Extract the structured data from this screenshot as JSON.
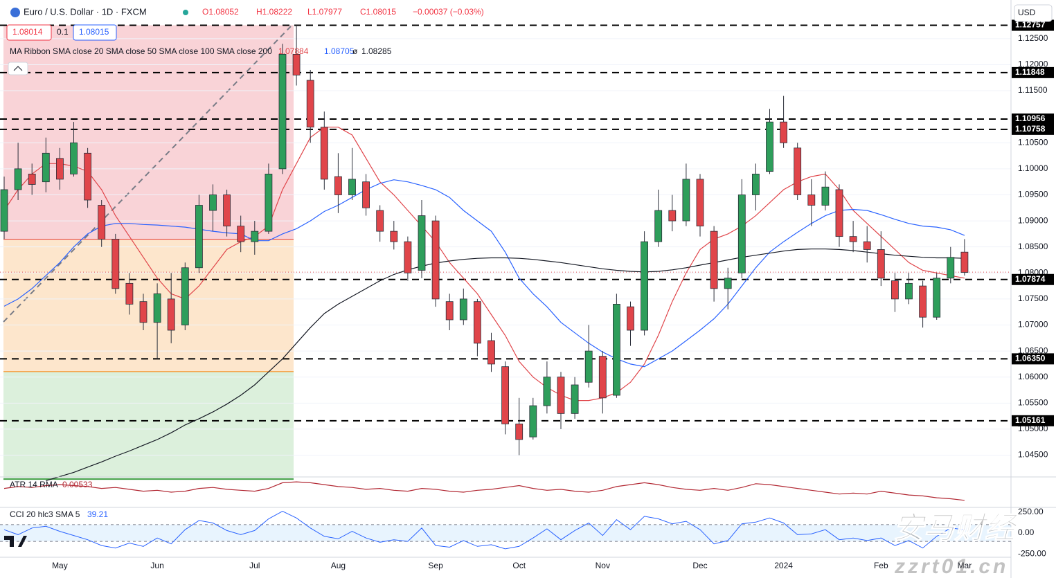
{
  "chart_data": {
    "type": "candlestick",
    "title": "Euro / U.S. Dollar · 1D · FXCM",
    "ohlc_header": [
      "O1.08052",
      "H1.08222",
      "L1.07977",
      "C1.08015",
      "−0.00037 (−0.03%)"
    ],
    "trade": [
      "1.08014",
      "0.1",
      "1.08015"
    ],
    "currency": "USD",
    "categories": [
      null,
      null,
      null,
      null,
      "May",
      null,
      null,
      null,
      null,
      null,
      null,
      "Jun",
      null,
      null,
      null,
      null,
      null,
      null,
      "Jul",
      null,
      null,
      null,
      null,
      null,
      "Aug",
      null,
      null,
      null,
      null,
      null,
      null,
      "Sep",
      null,
      null,
      null,
      null,
      null,
      "Oct",
      null,
      null,
      null,
      null,
      null,
      "Nov",
      null,
      null,
      null,
      null,
      null,
      null,
      "Dec",
      null,
      null,
      null,
      null,
      null,
      "2024",
      null,
      null,
      null,
      null,
      null,
      null,
      "Feb",
      null,
      null,
      null,
      null,
      null,
      "Mar"
    ],
    "open": [
      1.088,
      1.096,
      1.099,
      1.0975,
      1.102,
      1.099,
      1.103,
      1.093,
      1.0865,
      1.078,
      1.0745,
      1.0705,
      1.075,
      1.07,
      1.081,
      1.092,
      1.095,
      1.089,
      1.086,
      1.088,
      1.1,
      1.122,
      1.117,
      1.108,
      1.0985,
      1.095,
      1.0975,
      1.092,
      1.088,
      1.086,
      1.0805,
      1.09,
      1.0745,
      1.071,
      1.0745,
      1.067,
      1.062,
      1.051,
      1.0485,
      1.0545,
      1.06,
      1.053,
      1.059,
      1.064,
      1.0565,
      1.0735,
      1.069,
      1.086,
      1.092,
      1.09,
      1.098,
      1.088,
      1.077,
      1.08,
      1.095,
      1.0995,
      1.109,
      1.104,
      1.095,
      1.093,
      1.096,
      1.087,
      1.086,
      1.0845,
      1.0785,
      1.075,
      1.0775,
      1.0715,
      1.079,
      1.084
    ],
    "high": [
      1.0985,
      1.105,
      1.101,
      1.106,
      1.104,
      1.109,
      1.104,
      1.094,
      1.0875,
      1.08,
      1.076,
      1.078,
      1.08,
      1.082,
      1.095,
      1.097,
      1.096,
      1.091,
      1.09,
      1.101,
      1.124,
      1.1276,
      1.119,
      1.111,
      1.103,
      1.104,
      1.099,
      1.093,
      1.09,
      1.087,
      1.094,
      1.091,
      1.076,
      1.077,
      1.075,
      1.0685,
      1.063,
      1.056,
      1.056,
      1.063,
      1.061,
      1.06,
      1.07,
      1.065,
      1.076,
      1.0745,
      1.088,
      1.096,
      1.095,
      1.101,
      1.099,
      1.089,
      1.081,
      1.098,
      1.101,
      1.1115,
      1.114,
      1.105,
      1.098,
      1.0995,
      1.097,
      1.09,
      1.089,
      1.088,
      1.08,
      1.08,
      1.0785,
      1.08,
      1.085,
      1.0865
    ],
    "low": [
      1.0865,
      1.094,
      1.095,
      1.0955,
      1.096,
      1.0985,
      1.0925,
      1.085,
      1.076,
      1.072,
      1.069,
      1.0635,
      1.0665,
      1.069,
      1.08,
      1.088,
      1.087,
      1.084,
      1.0835,
      1.0875,
      1.099,
      1.116,
      1.105,
      1.096,
      1.0915,
      1.094,
      1.091,
      1.086,
      1.0845,
      1.0785,
      1.079,
      1.0735,
      1.069,
      1.07,
      1.064,
      1.061,
      1.049,
      1.045,
      1.048,
      1.053,
      1.05,
      1.052,
      1.058,
      1.053,
      1.056,
      1.066,
      1.068,
      1.085,
      1.088,
      1.089,
      1.087,
      1.0745,
      1.073,
      1.079,
      1.092,
      1.099,
      1.104,
      1.094,
      1.089,
      1.092,
      1.085,
      1.084,
      1.082,
      1.0775,
      1.0725,
      1.074,
      1.0695,
      1.071,
      1.078,
      1.0795
    ],
    "close": [
      1.096,
      1.1,
      1.097,
      1.103,
      1.098,
      1.105,
      1.094,
      1.0865,
      1.077,
      1.074,
      1.0705,
      1.076,
      1.069,
      1.081,
      1.093,
      1.095,
      1.089,
      1.086,
      1.088,
      1.099,
      1.122,
      1.118,
      1.108,
      1.098,
      1.095,
      1.098,
      1.0925,
      1.088,
      1.086,
      1.08,
      1.091,
      1.075,
      1.071,
      1.075,
      1.0665,
      1.0625,
      1.051,
      1.048,
      1.0545,
      1.06,
      1.053,
      1.0585,
      1.065,
      1.056,
      1.074,
      1.069,
      1.086,
      1.092,
      1.09,
      1.098,
      1.089,
      1.077,
      1.079,
      1.095,
      1.099,
      1.109,
      1.105,
      1.095,
      1.093,
      1.0965,
      1.087,
      1.086,
      1.0845,
      1.079,
      1.075,
      1.078,
      1.0715,
      1.079,
      1.083,
      1.0801
    ],
    "up_color": "#2e9e5b",
    "down_color": "#e0454a",
    "ylim": [
      1.04095,
      1.13136
    ],
    "yticks": [
      {
        "value": 1.045,
        "label": "1.04500"
      },
      {
        "value": 1.05,
        "label": "1.05000"
      },
      {
        "value": 1.055,
        "label": "1.05500"
      },
      {
        "value": 1.06,
        "label": "1.06000"
      },
      {
        "value": 1.065,
        "label": "1.06500"
      },
      {
        "value": 1.07,
        "label": "1.07000"
      },
      {
        "value": 1.075,
        "label": "1.07500"
      },
      {
        "value": 1.08,
        "label": "1.08000"
      },
      {
        "value": 1.085,
        "label": "1.08500"
      },
      {
        "value": 1.09,
        "label": "1.09000"
      },
      {
        "value": 1.095,
        "label": "1.09500"
      },
      {
        "value": 1.1,
        "label": "1.10000"
      },
      {
        "value": 1.105,
        "label": "1.10500"
      },
      {
        "value": 1.115,
        "label": "1.11500"
      },
      {
        "value": 1.12,
        "label": "1.12000"
      },
      {
        "value": 1.125,
        "label": "1.12500"
      }
    ],
    "levels": [
      {
        "value": 1.12757,
        "label": "1.12757"
      },
      {
        "value": 1.11848,
        "label": "1.11848"
      },
      {
        "value": 1.10956,
        "label": "1.10956"
      },
      {
        "value": 1.10758,
        "label": "1.10758"
      },
      {
        "value": 1.07874,
        "label": "1.07874"
      },
      {
        "value": 1.0635,
        "label": "1.06350"
      },
      {
        "value": 1.05161,
        "label": "1.05161"
      }
    ],
    "last_price": 1.08015,
    "zones": [
      {
        "from": 1.12757,
        "to": 1.0864,
        "color": "#f9d3d7",
        "line": "#e53935"
      },
      {
        "from": 1.0864,
        "to": 1.06098,
        "color": "#fde6cc",
        "line": "#f57c00"
      },
      {
        "from": 1.06098,
        "to": 1.0404,
        "color": "#dcf0dc",
        "line": "#43a047"
      }
    ],
    "ma_legend": "MA Ribbon SMA close 20 SMA close 50 SMA close 100 SMA close 200",
    "overlays": [
      {
        "color": "#e0454a",
        "value_label": "1.07884",
        "values": [
          1.092,
          1.096,
          1.099,
          1.101,
          1.101,
          1.1005,
          1.0995,
          1.096,
          1.091,
          1.087,
          1.083,
          1.079,
          1.076,
          1.075,
          1.0775,
          1.081,
          1.0845,
          1.086,
          1.087,
          1.089,
          1.096,
          1.101,
          1.106,
          1.108,
          1.108,
          1.1065,
          1.102,
          1.0975,
          1.095,
          1.092,
          1.089,
          1.086,
          1.082,
          1.079,
          1.076,
          1.072,
          1.068,
          1.063,
          1.06,
          1.058,
          1.0565,
          1.0555,
          1.0555,
          1.056,
          1.057,
          1.059,
          1.0625,
          1.068,
          1.0745,
          1.08,
          1.0845,
          1.0865,
          1.0875,
          1.089,
          1.091,
          1.0935,
          1.096,
          1.0975,
          1.0985,
          1.099,
          1.096,
          1.092,
          1.0895,
          1.087,
          1.0845,
          1.082,
          1.0805,
          1.08,
          1.0795,
          1.079
        ]
      },
      {
        "color": "#2962ff",
        "value_label": "1.08705",
        "values": [
          1.0736,
          1.075,
          1.077,
          1.0795,
          1.082,
          1.085,
          1.0875,
          1.089,
          1.0895,
          1.0895,
          1.0893,
          1.0892,
          1.089,
          1.0888,
          1.0884,
          1.088,
          1.0877,
          1.0875,
          1.0862,
          1.0862,
          1.0875,
          1.0885,
          1.09,
          1.0918,
          1.093,
          1.0945,
          1.096,
          1.0972,
          1.0979,
          1.0975,
          1.0968,
          1.096,
          1.0945,
          1.092,
          1.09,
          1.088,
          1.084,
          1.079,
          1.076,
          1.0735,
          1.0705,
          1.0685,
          1.0665,
          1.0648,
          1.0635,
          1.0625,
          1.062,
          1.0635,
          1.065,
          1.067,
          1.069,
          1.0712,
          1.074,
          1.0775,
          1.081,
          1.084,
          1.086,
          1.0878,
          1.0895,
          1.091,
          1.092,
          1.0922,
          1.092,
          1.0912,
          1.0903,
          1.0895,
          1.089,
          1.0888,
          1.0883,
          1.0872
        ]
      },
      {
        "color": "#131722",
        "value_label": "ø",
        "values": null
      },
      {
        "color": "#131722",
        "value_label": "1.08285",
        "values": [
          null,
          null,
          null,
          1.0401,
          1.0409,
          1.0417,
          1.0427,
          1.0437,
          1.0448,
          1.0458,
          1.0469,
          1.048,
          1.0493,
          1.0508,
          1.052,
          1.0533,
          1.0548,
          1.0565,
          1.0585,
          1.061,
          1.0635,
          1.0665,
          1.0695,
          1.0722,
          1.074,
          1.0755,
          1.077,
          1.0785,
          1.0797,
          1.0806,
          1.0813,
          1.0819,
          1.0823,
          1.0826,
          1.0828,
          1.0829,
          1.0829,
          1.0828,
          1.0826,
          1.0823,
          1.082,
          1.0816,
          1.0812,
          1.0808,
          1.0805,
          1.0803,
          1.0802,
          1.0803,
          1.0806,
          1.081,
          1.0815,
          1.082,
          1.0825,
          1.083,
          1.0834,
          1.0838,
          1.0842,
          1.0845,
          1.0846,
          1.0846,
          1.0845,
          1.0843,
          1.084,
          1.0837,
          1.0834,
          1.0832,
          1.083,
          1.0829,
          1.0829,
          1.0828
        ]
      }
    ],
    "atr": {
      "label": "ATR 14 RMA",
      "value_label": "0.00533",
      "color": "#b22833",
      "ylim": [
        0.0048,
        0.0076
      ],
      "values": [
        0.0066,
        0.0068,
        0.0067,
        0.0069,
        0.007,
        0.0069,
        0.0068,
        0.0066,
        0.0067,
        0.0065,
        0.0063,
        0.0064,
        0.0062,
        0.0063,
        0.0066,
        0.0067,
        0.0065,
        0.0064,
        0.0063,
        0.0066,
        0.0072,
        0.0073,
        0.0072,
        0.007,
        0.0068,
        0.0067,
        0.0065,
        0.0066,
        0.0064,
        0.0063,
        0.0066,
        0.0065,
        0.0063,
        0.0062,
        0.0064,
        0.0065,
        0.0067,
        0.0069,
        0.0066,
        0.0064,
        0.0065,
        0.0063,
        0.0062,
        0.0064,
        0.0068,
        0.007,
        0.0072,
        0.007,
        0.0067,
        0.0065,
        0.0064,
        0.0066,
        0.0064,
        0.0067,
        0.0071,
        0.007,
        0.0068,
        0.0066,
        0.0064,
        0.0062,
        0.006,
        0.0061,
        0.006,
        0.0063,
        0.0061,
        0.0059,
        0.0058,
        0.0056,
        0.0055,
        0.00533
      ]
    },
    "cci": {
      "label": "CCI 20 hlc3 SMA 5",
      "value_label": "39.21",
      "color": "#2962ff",
      "ylim": [
        -290,
        290
      ],
      "band": [
        -100,
        100
      ],
      "yticks": [
        {
          "value": 250,
          "label": "250.00"
        },
        {
          "value": 0,
          "label": "0.00"
        },
        {
          "value": -250,
          "label": "-250.00"
        }
      ],
      "values": [
        40,
        -20,
        60,
        80,
        20,
        -30,
        -80,
        -150,
        -180,
        -120,
        -160,
        -60,
        -130,
        40,
        150,
        120,
        30,
        -20,
        30,
        170,
        260,
        180,
        60,
        -40,
        -70,
        20,
        -60,
        -110,
        -80,
        -100,
        60,
        -150,
        -170,
        -90,
        -160,
        -140,
        -190,
        -160,
        -60,
        50,
        -80,
        30,
        120,
        -30,
        160,
        40,
        200,
        170,
        110,
        140,
        40,
        -130,
        -90,
        110,
        130,
        180,
        120,
        -20,
        -10,
        40,
        -80,
        -60,
        -90,
        -60,
        -150,
        -90,
        -180,
        -40,
        60,
        39.21
      ]
    },
    "watermark": [
      "安马财经",
      "zzrt01.cn"
    ]
  }
}
